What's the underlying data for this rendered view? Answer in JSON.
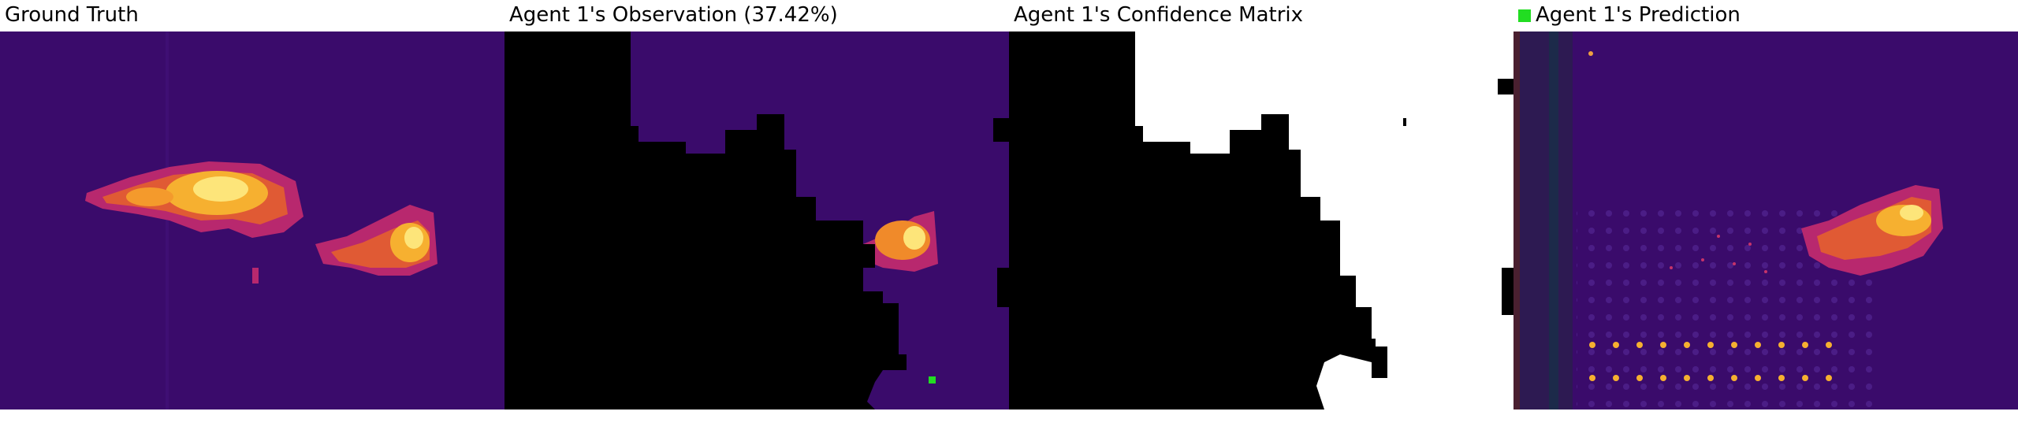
{
  "panels": [
    {
      "title": "Ground Truth"
    },
    {
      "title": "Agent 1's Observation (37.42%)"
    },
    {
      "title": "Agent 1's Confidence Matrix"
    },
    {
      "title": "Agent 1's Prediction"
    }
  ],
  "colors": {
    "background_dark": "#3a0b6b",
    "hot": "#f7c23a",
    "warm": "#e2601f",
    "agent_marker": "#22dd22",
    "mask": "#000000"
  }
}
